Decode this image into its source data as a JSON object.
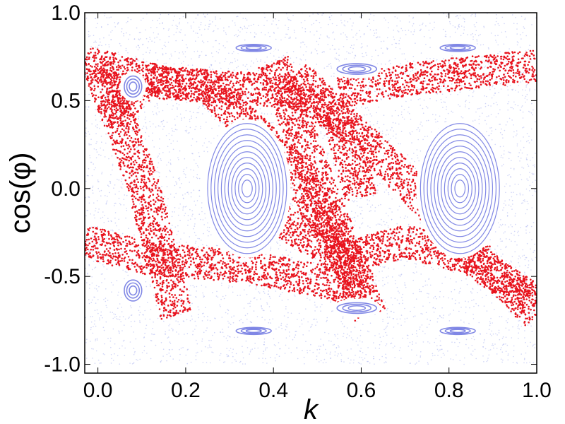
{
  "chart_data": {
    "type": "scatter",
    "title": "",
    "xlabel": "k",
    "ylabel": "cos(φ)",
    "xlim": [
      -0.03,
      1.0
    ],
    "ylim": [
      -1.05,
      1.0
    ],
    "grid": false,
    "legend": "none",
    "x_ticks": [
      {
        "value": 0.0,
        "label": "0.0"
      },
      {
        "value": 0.2,
        "label": "0.2"
      },
      {
        "value": 0.4,
        "label": "0.4"
      },
      {
        "value": 0.6,
        "label": "0.6"
      },
      {
        "value": 0.8,
        "label": "0.8"
      },
      {
        "value": 1.0,
        "label": "1.0"
      }
    ],
    "y_ticks": [
      {
        "value": 1.0,
        "label": "1.0"
      },
      {
        "value": 0.5,
        "label": "0.5"
      },
      {
        "value": 0.0,
        "label": "0.0"
      },
      {
        "value": -0.5,
        "label": "-0.5"
      },
      {
        "value": -1.0,
        "label": "-1.0"
      }
    ],
    "series": [
      {
        "kind": "background-chaotic-sea",
        "color": "#9aa3ee",
        "y_range": [
          -1.0,
          1.0
        ]
      },
      {
        "kind": "stable-islands",
        "color": "#6b73e0",
        "islands": [
          {
            "x": 0.34,
            "y": 0.0,
            "rx": 0.09,
            "ry": 0.37
          },
          {
            "x": 0.825,
            "y": 0.0,
            "rx": 0.09,
            "ry": 0.37
          },
          {
            "x": 0.08,
            "y": 0.58,
            "rx": 0.02,
            "ry": 0.06
          },
          {
            "x": 0.08,
            "y": -0.58,
            "rx": 0.02,
            "ry": 0.06
          },
          {
            "x": 0.355,
            "y": 0.8,
            "rx": 0.04,
            "ry": 0.02
          },
          {
            "x": 0.82,
            "y": 0.8,
            "rx": 0.04,
            "ry": 0.02
          },
          {
            "x": 0.59,
            "y": 0.68,
            "rx": 0.045,
            "ry": 0.03
          },
          {
            "x": 0.59,
            "y": -0.68,
            "rx": 0.045,
            "ry": 0.03
          },
          {
            "x": 0.355,
            "y": -0.81,
            "rx": 0.04,
            "ry": 0.02
          },
          {
            "x": 0.82,
            "y": -0.81,
            "rx": 0.04,
            "ry": 0.02
          }
        ]
      },
      {
        "kind": "chaotic-trajectory",
        "color": "#e8141e",
        "bands": [
          {
            "x": [
              -0.03,
              0.15,
              0.45,
              0.55,
              0.6
            ],
            "y": [
              0.72,
              0.6,
              0.55,
              0.4,
              -0.05
            ]
          },
          {
            "x": [
              0.55,
              0.7,
              1.0
            ],
            "y": [
              0.55,
              0.62,
              0.7
            ]
          },
          {
            "x": [
              0.02,
              0.12,
              0.25,
              0.45,
              0.6
            ],
            "y": [
              0.4,
              0.62,
              0.58,
              0.1,
              -0.55
            ]
          },
          {
            "x": [
              -0.03,
              0.12,
              0.35,
              0.55,
              0.6
            ],
            "y": [
              -0.3,
              -0.4,
              -0.45,
              -0.55,
              -0.65
            ]
          },
          {
            "x": [
              0.4,
              0.55,
              0.7,
              0.85,
              1.0
            ],
            "y": [
              -0.15,
              -0.4,
              -0.3,
              -0.4,
              -0.65
            ]
          },
          {
            "x": [
              0.45,
              0.55,
              0.7,
              0.85,
              1.0
            ],
            "y": [
              0.65,
              0.4,
              0.05,
              -0.35,
              -0.72
            ]
          },
          {
            "x": [
              0.0,
              0.1,
              0.18
            ],
            "y": [
              0.7,
              0.05,
              -0.72
            ]
          },
          {
            "x": [
              0.4,
              0.5,
              0.62
            ],
            "y": [
              0.72,
              0.05,
              -0.72
            ]
          }
        ]
      }
    ]
  }
}
